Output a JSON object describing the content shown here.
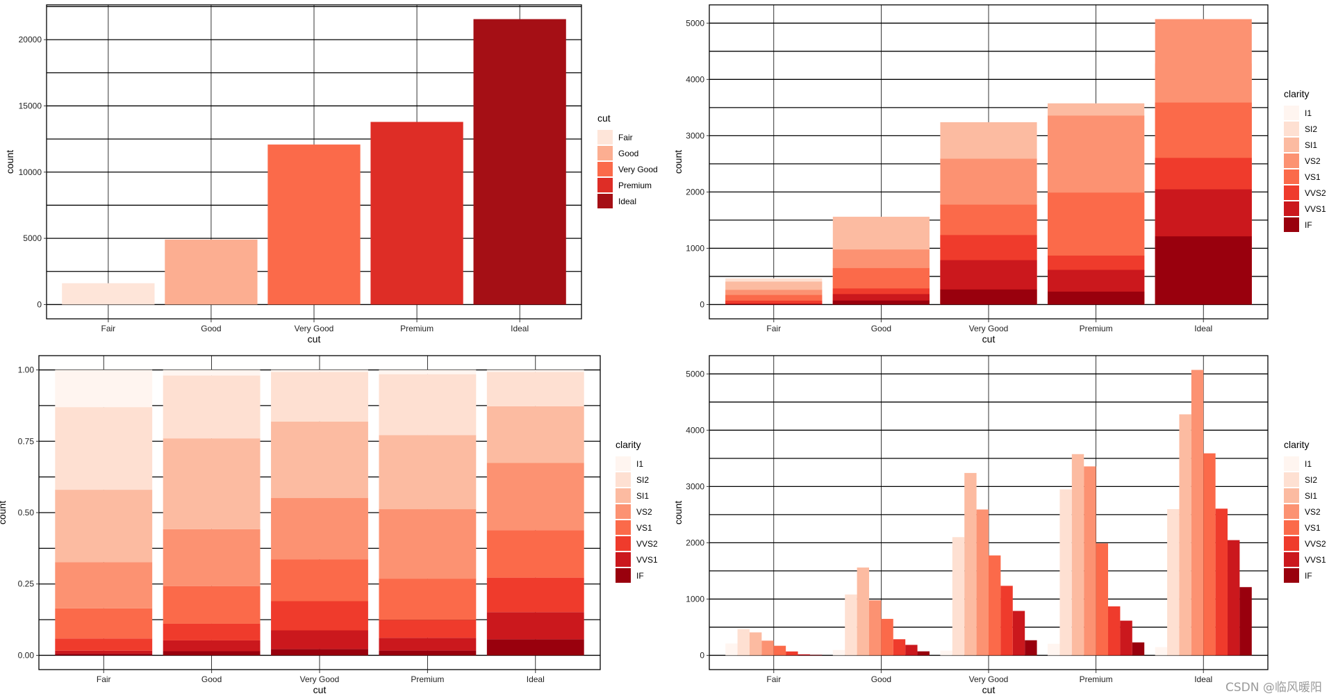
{
  "palettes": {
    "cut": [
      "#FEE5D9",
      "#FCAE91",
      "#FB6A4A",
      "#DE2D26",
      "#A50F15"
    ],
    "clarity": [
      "#FFF5F0",
      "#FEE0D2",
      "#FCBBA1",
      "#FC9272",
      "#FB6A4A",
      "#EF3B2C",
      "#CB181D",
      "#99000D"
    ]
  },
  "chart_data": [
    {
      "type": "bar",
      "position": "stack",
      "xlabel": "cut",
      "ylabel": "count",
      "categories": [
        "Fair",
        "Good",
        "Very Good",
        "Premium",
        "Ideal"
      ],
      "values": [
        1610,
        4906,
        12082,
        13791,
        21551
      ],
      "yticks": [
        0,
        5000,
        10000,
        15000,
        20000
      ],
      "ylim": [
        -1077.55,
        22628.55
      ],
      "grid": true,
      "legend": {
        "title": "cut",
        "entries": [
          "Fair",
          "Good",
          "Very Good",
          "Premium",
          "Ideal"
        ],
        "placement": "right"
      },
      "fill": "cut"
    },
    {
      "type": "bar",
      "position": "identity",
      "xlabel": "cut",
      "ylabel": "count",
      "categories": [
        "Fair",
        "Good",
        "Very Good",
        "Premium",
        "Ideal"
      ],
      "series_ref": "clarity_counts",
      "yticks": [
        0,
        1000,
        2000,
        3000,
        4000,
        5000
      ],
      "ylim": [
        -253.55,
        5324.55
      ],
      "grid": true,
      "legend": {
        "title": "clarity",
        "entries": [
          "I1",
          "SI2",
          "SI1",
          "VS2",
          "VS1",
          "VVS2",
          "VVS1",
          "IF"
        ],
        "placement": "right"
      },
      "fill": "clarity"
    },
    {
      "type": "bar",
      "position": "fill",
      "xlabel": "cut",
      "ylabel": "count",
      "categories": [
        "Fair",
        "Good",
        "Very Good",
        "Premium",
        "Ideal"
      ],
      "series_ref": "clarity_counts",
      "yticks": [
        0,
        0.25,
        0.5,
        0.75,
        1
      ],
      "yticklabels": [
        "0.00",
        "0.25",
        "0.50",
        "0.75",
        "1.00"
      ],
      "ylim": [
        -0.05,
        1.05
      ],
      "grid": true,
      "legend": {
        "title": "clarity",
        "entries": [
          "I1",
          "SI2",
          "SI1",
          "VS2",
          "VS1",
          "VVS2",
          "VVS1",
          "IF"
        ],
        "placement": "right"
      },
      "fill": "clarity"
    },
    {
      "type": "bar",
      "position": "dodge",
      "xlabel": "cut",
      "ylabel": "count",
      "categories": [
        "Fair",
        "Good",
        "Very Good",
        "Premium",
        "Ideal"
      ],
      "series_ref": "clarity_counts",
      "yticks": [
        0,
        1000,
        2000,
        3000,
        4000,
        5000
      ],
      "ylim": [
        -253.55,
        5324.55
      ],
      "grid": true,
      "legend": {
        "title": "clarity",
        "entries": [
          "I1",
          "SI2",
          "SI1",
          "VS2",
          "VS1",
          "VVS2",
          "VVS1",
          "IF"
        ],
        "placement": "right"
      },
      "fill": "clarity"
    }
  ],
  "clarity_counts": [
    {
      "name": "I1",
      "values": [
        210,
        96,
        84,
        205,
        146
      ]
    },
    {
      "name": "SI2",
      "values": [
        466,
        1081,
        2100,
        2949,
        2598
      ]
    },
    {
      "name": "SI1",
      "values": [
        408,
        1560,
        3240,
        3575,
        4282
      ]
    },
    {
      "name": "VS2",
      "values": [
        261,
        978,
        2591,
        3357,
        5071
      ]
    },
    {
      "name": "VS1",
      "values": [
        170,
        648,
        1775,
        1989,
        3589
      ]
    },
    {
      "name": "VVS2",
      "values": [
        69,
        286,
        1235,
        870,
        2606
      ]
    },
    {
      "name": "VVS1",
      "values": [
        17,
        186,
        789,
        616,
        2047
      ]
    },
    {
      "name": "IF",
      "values": [
        9,
        71,
        268,
        230,
        1212
      ]
    }
  ],
  "watermark": "CSDN @临风暖阳"
}
